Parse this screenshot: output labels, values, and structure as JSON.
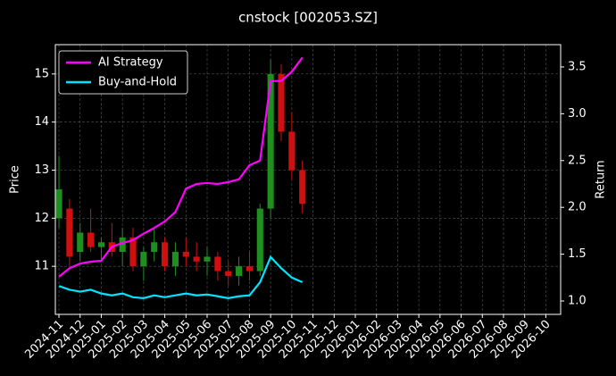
{
  "chart_data": {
    "type": "candlestick",
    "title": "cnstock [002053.SZ]",
    "y_label": "Price",
    "y2_label": "Return",
    "x": [
      0,
      0.5,
      1,
      1.5,
      2,
      2.5,
      3,
      3.5,
      4,
      4.5,
      5,
      5.5,
      6,
      6.5,
      7,
      7.5,
      8,
      8.5,
      9,
      9.5,
      10,
      10.5,
      11,
      11.5
    ],
    "open": [
      12.0,
      12.2,
      11.3,
      11.7,
      11.4,
      11.5,
      11.3,
      11.6,
      11.0,
      11.3,
      11.5,
      11.0,
      11.3,
      11.2,
      11.1,
      11.2,
      10.9,
      10.8,
      11.0,
      10.9,
      12.2,
      15.0,
      13.8,
      13.0
    ],
    "high": [
      13.3,
      12.4,
      11.9,
      12.2,
      11.6,
      11.9,
      11.8,
      11.8,
      11.4,
      11.8,
      11.6,
      11.5,
      11.6,
      11.5,
      11.4,
      11.3,
      11.1,
      11.2,
      11.3,
      12.3,
      15.3,
      15.2,
      14.2,
      13.2
    ],
    "low": [
      11.8,
      11.0,
      11.1,
      11.3,
      11.1,
      11.2,
      11.0,
      10.9,
      10.7,
      11.1,
      10.9,
      10.8,
      11.0,
      10.9,
      10.8,
      10.7,
      10.6,
      10.6,
      10.7,
      10.8,
      12.0,
      13.6,
      12.8,
      12.1
    ],
    "close": [
      12.6,
      11.2,
      11.7,
      11.4,
      11.5,
      11.3,
      11.6,
      11.0,
      11.3,
      11.5,
      11.0,
      11.3,
      11.2,
      11.1,
      11.2,
      10.9,
      10.8,
      11.0,
      10.9,
      12.2,
      15.0,
      13.8,
      13.0,
      12.3
    ],
    "up_color": "#1f8f1f",
    "down_color": "#d01010",
    "series": [
      {
        "name": "AI Strategy",
        "color": "#ff00ff",
        "axis": "y2",
        "values": [
          1.26,
          1.35,
          1.4,
          1.42,
          1.43,
          1.58,
          1.62,
          1.65,
          1.72,
          1.78,
          1.85,
          1.95,
          2.2,
          2.25,
          2.26,
          2.25,
          2.27,
          2.3,
          2.45,
          2.5,
          3.35,
          3.35,
          3.45,
          3.6
        ]
      },
      {
        "name": "Buy-and-Hold",
        "color": "#00e5ff",
        "axis": "y2",
        "values": [
          1.16,
          1.12,
          1.1,
          1.12,
          1.08,
          1.06,
          1.08,
          1.04,
          1.03,
          1.06,
          1.04,
          1.06,
          1.08,
          1.06,
          1.07,
          1.05,
          1.03,
          1.05,
          1.06,
          1.2,
          1.47,
          1.35,
          1.25,
          1.2
        ]
      }
    ],
    "xlim": [
      -0.17,
      23.7
    ],
    "xticks": [
      {
        "value": 0,
        "label": "2024-11"
      },
      {
        "value": 1,
        "label": "2024-12"
      },
      {
        "value": 2,
        "label": "2025-01"
      },
      {
        "value": 3,
        "label": "2025-02"
      },
      {
        "value": 4,
        "label": "2025-03"
      },
      {
        "value": 5,
        "label": "2025-04"
      },
      {
        "value": 6,
        "label": "2025-05"
      },
      {
        "value": 7,
        "label": "2025-06"
      },
      {
        "value": 8,
        "label": "2025-07"
      },
      {
        "value": 9,
        "label": "2025-08"
      },
      {
        "value": 10,
        "label": "2025-09"
      },
      {
        "value": 11,
        "label": "2025-10"
      },
      {
        "value": 12,
        "label": "2025-11"
      },
      {
        "value": 13,
        "label": "2025-12"
      },
      {
        "value": 14,
        "label": "2026-01"
      },
      {
        "value": 15,
        "label": "2026-02"
      },
      {
        "value": 16,
        "label": "2026-03"
      },
      {
        "value": 17,
        "label": "2026-04"
      },
      {
        "value": 18,
        "label": "2026-05"
      },
      {
        "value": 19,
        "label": "2026-06"
      },
      {
        "value": 20,
        "label": "2026-07"
      },
      {
        "value": 21,
        "label": "2026-08"
      },
      {
        "value": 22,
        "label": "2026-09"
      },
      {
        "value": 23,
        "label": "2026-10"
      }
    ],
    "ylim": [
      10.0,
      15.61
    ],
    "yticks": [
      11,
      12,
      13,
      14,
      15
    ],
    "y2lim": [
      0.857,
      3.738
    ],
    "y2ticks": [
      {
        "value": 1,
        "label": "1.0"
      },
      {
        "value": 1.5,
        "label": "1.5"
      },
      {
        "value": 2,
        "label": "2.0"
      },
      {
        "value": 2.5,
        "label": "2.5"
      },
      {
        "value": 3,
        "label": "3.0"
      },
      {
        "value": 3.5,
        "label": "3.5"
      }
    ],
    "grid": true,
    "legend": "upper left"
  }
}
